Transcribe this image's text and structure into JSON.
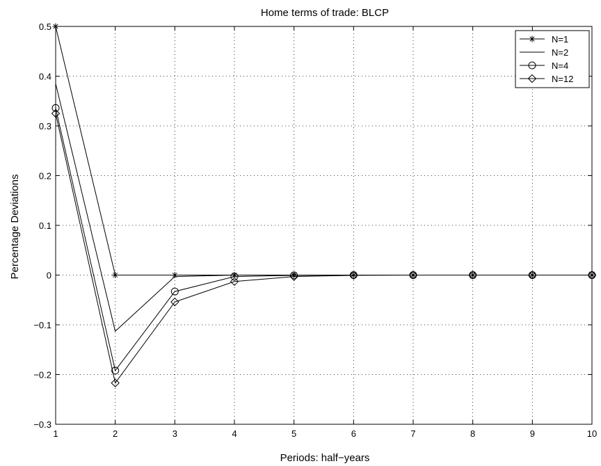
{
  "chart_data": {
    "type": "line",
    "title": "Home terms of trade: BLCP",
    "xlabel": "Periods: half−years",
    "ylabel": "Percentage Deviations",
    "xlim": [
      1,
      10
    ],
    "ylim": [
      -0.3,
      0.5
    ],
    "x_ticks": [
      "1",
      "2",
      "3",
      "4",
      "5",
      "6",
      "7",
      "8",
      "9",
      "10"
    ],
    "y_ticks": [
      "0.5",
      "0.4",
      "0.3",
      "0.2",
      "0.1",
      "0",
      "−0.1",
      "−0.2",
      "−0.3"
    ],
    "grid": true,
    "legend_position": "top-right",
    "x": [
      1,
      2,
      3,
      4,
      5,
      6,
      7,
      8,
      9,
      10
    ],
    "series": [
      {
        "name": "N=1",
        "marker": "star",
        "values": [
          0.5,
          0.0,
          0.0,
          0.0,
          0.0,
          0.0,
          0.0,
          0.0,
          0.0,
          0.0
        ]
      },
      {
        "name": "N=2",
        "marker": "none",
        "values": [
          0.385,
          -0.113,
          -0.003,
          0.0,
          0.0,
          0.0,
          0.0,
          0.0,
          0.0,
          0.0
        ]
      },
      {
        "name": "N=4",
        "marker": "circle",
        "values": [
          0.336,
          -0.192,
          -0.033,
          -0.003,
          -0.0005,
          0.0,
          0.0,
          0.0,
          0.0,
          0.0
        ]
      },
      {
        "name": "N=12",
        "marker": "diamond",
        "values": [
          0.325,
          -0.217,
          -0.054,
          -0.013,
          -0.003,
          -0.0005,
          0.0,
          0.0,
          0.0,
          0.0
        ]
      }
    ]
  }
}
